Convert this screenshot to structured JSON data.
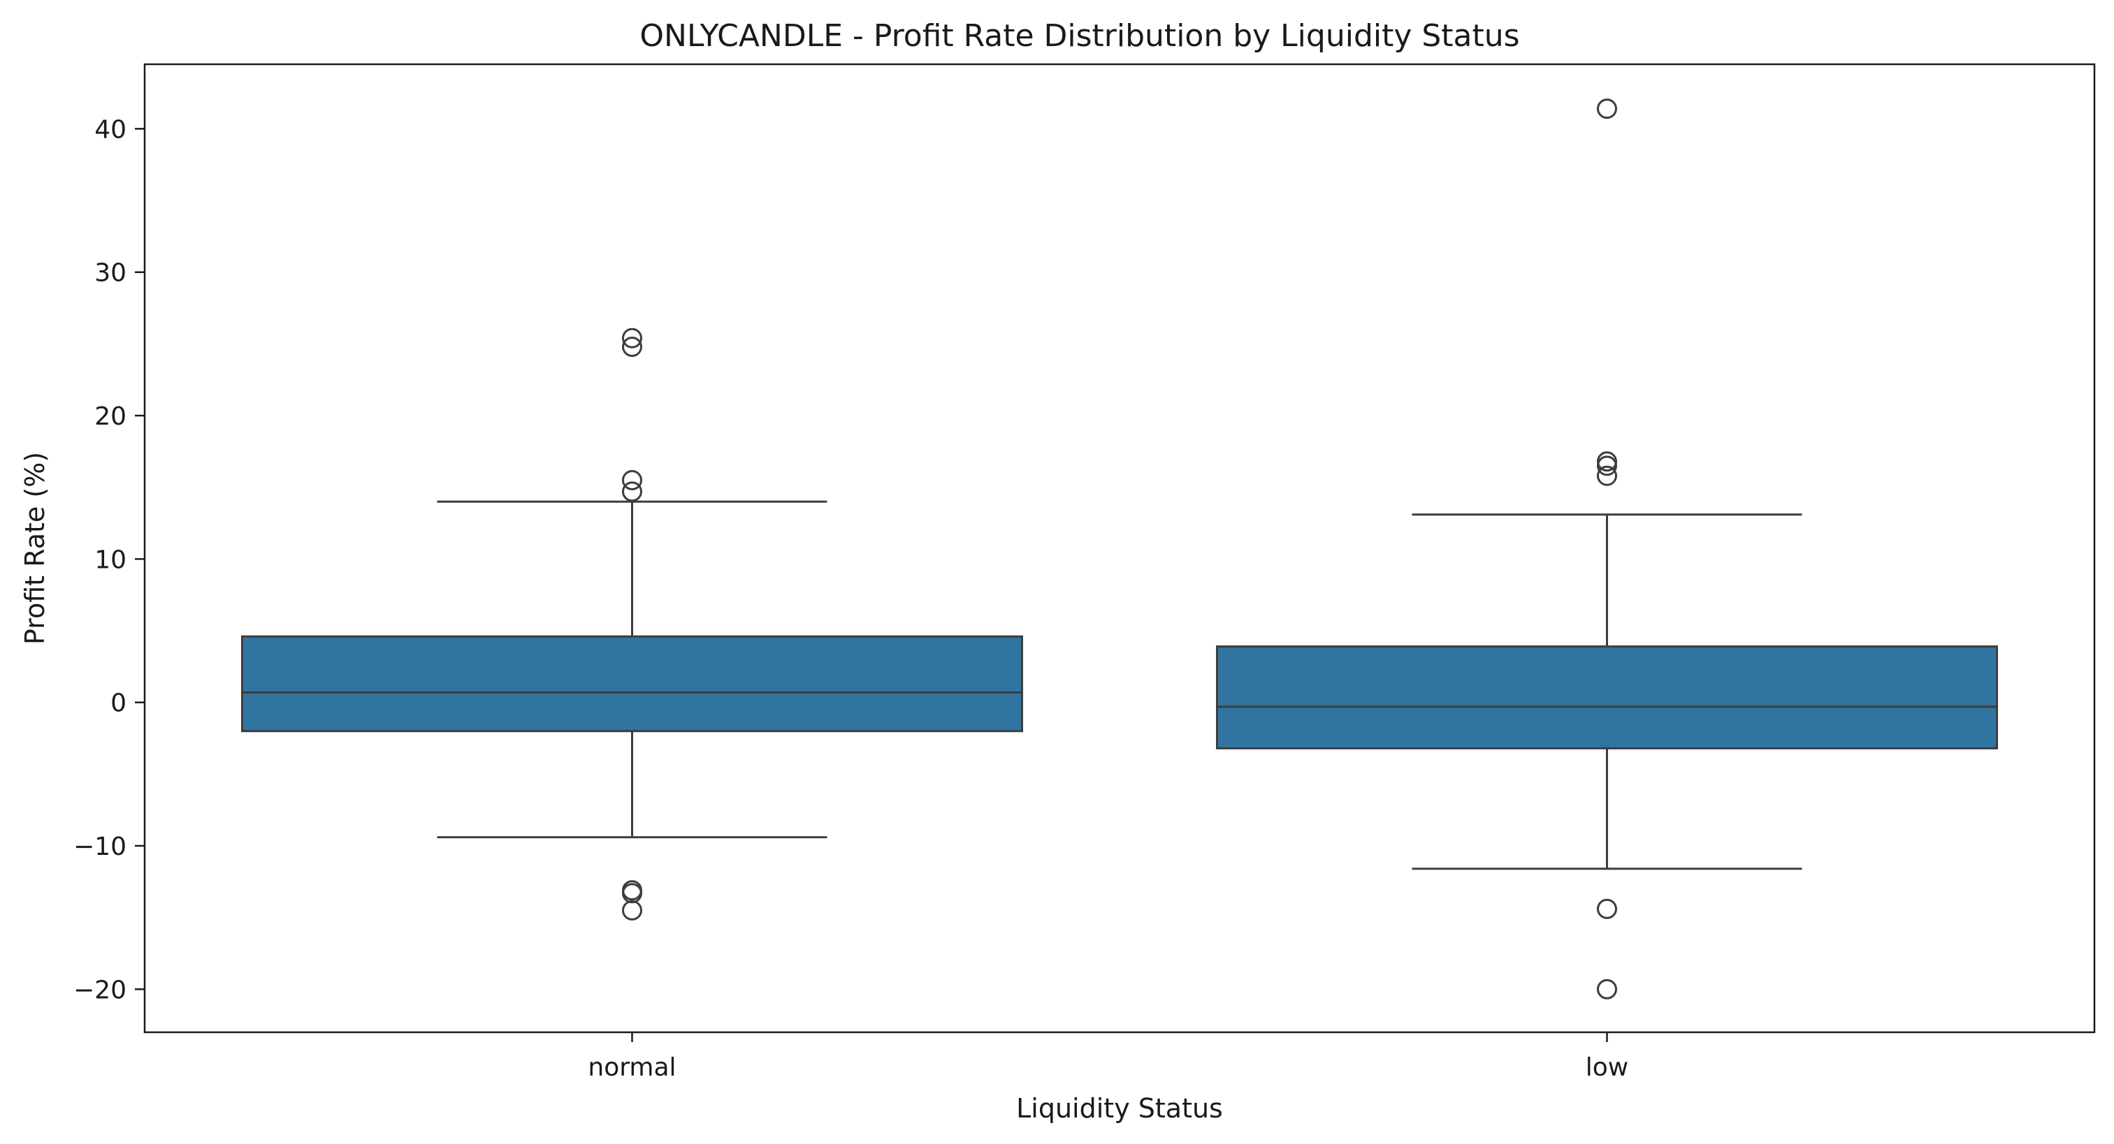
{
  "chart_data": {
    "type": "box",
    "title": "ONLYCANDLE - Profit Rate Distribution by Liquidity Status",
    "xlabel": "Liquidity Status",
    "ylabel": "Profit Rate (%)",
    "ylim": [
      -23.0,
      44.5
    ],
    "yticks": [
      -20,
      -10,
      0,
      10,
      20,
      30,
      40
    ],
    "ytick_labels": [
      "−20",
      "−10",
      "0",
      "10",
      "20",
      "30",
      "40"
    ],
    "grid": false,
    "box_color": "#3274a1",
    "categories": [
      "normal",
      "low"
    ],
    "boxes": [
      {
        "category": "normal",
        "whisker_low": -9.4,
        "q1": -2.0,
        "median": 0.7,
        "q3": 4.6,
        "whisker_high": 14.0,
        "outliers": [
          25.4,
          24.8,
          15.5,
          14.7,
          -13.1,
          -13.3,
          -14.5
        ]
      },
      {
        "category": "low",
        "whisker_low": -11.6,
        "q1": -3.2,
        "median": -0.3,
        "q3": 3.9,
        "whisker_high": 13.1,
        "outliers": [
          41.4,
          16.8,
          16.5,
          15.8,
          -14.4,
          -20.0
        ]
      }
    ]
  }
}
